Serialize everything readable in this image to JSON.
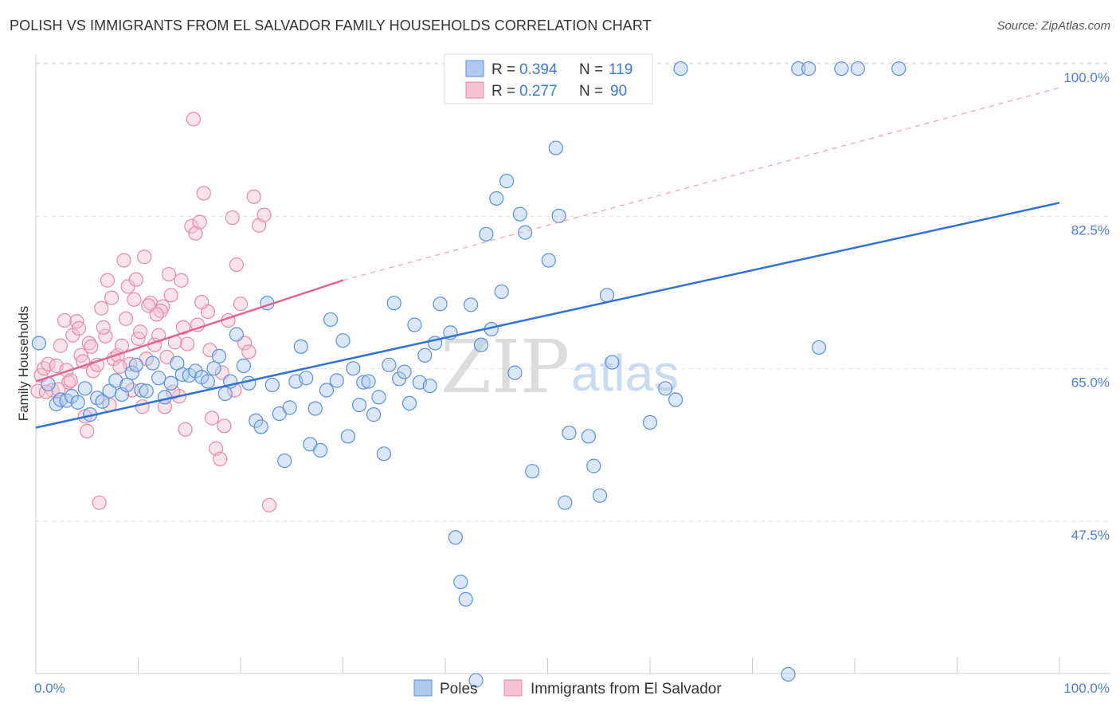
{
  "title": "POLISH VS IMMIGRANTS FROM EL SALVADOR FAMILY HOUSEHOLDS CORRELATION CHART",
  "source": "Source: ZipAtlas.com",
  "watermark": {
    "zip": "ZIP",
    "atlas": "atlas"
  },
  "chart_data": {
    "type": "scatter",
    "ylabel": "Family Households",
    "xlim": [
      0,
      100
    ],
    "ylim": [
      32,
      102
    ],
    "x_tick_labels": {
      "left": "0.0%",
      "right": "100.0%"
    },
    "y_ticks": [
      {
        "value": 47.5,
        "label": "47.5%"
      },
      {
        "value": 65.0,
        "label": "65.0%"
      },
      {
        "value": 82.5,
        "label": "82.5%"
      },
      {
        "value": 100.0,
        "label": "100.0%"
      }
    ],
    "grid": true,
    "legend_top": [
      {
        "r_label": "R = ",
        "r_value": "0.394",
        "n_label": "N = ",
        "n_value": "119"
      },
      {
        "r_label": "R = ",
        "r_value": "0.277",
        "n_label": "N = ",
        "n_value": "90"
      }
    ],
    "series": [
      {
        "name": "Poles",
        "color": "#5b8fde",
        "fill": "#aec9f0",
        "trend": {
          "x": [
            0,
            100
          ],
          "y": [
            59.8,
            85.6
          ],
          "style": "solid"
        },
        "points": [
          [
            0.3,
            69.5
          ],
          [
            1.2,
            64.8
          ],
          [
            2.0,
            62.5
          ],
          [
            2.4,
            63.0
          ],
          [
            3.0,
            62.9
          ],
          [
            3.5,
            63.4
          ],
          [
            4.1,
            62.7
          ],
          [
            4.8,
            64.3
          ],
          [
            5.3,
            61.3
          ],
          [
            6.0,
            63.2
          ],
          [
            6.5,
            62.8
          ],
          [
            7.2,
            64.0
          ],
          [
            7.8,
            65.2
          ],
          [
            8.4,
            63.6
          ],
          [
            8.9,
            64.7
          ],
          [
            9.4,
            66.1
          ],
          [
            9.8,
            67.0
          ],
          [
            10.3,
            64.1
          ],
          [
            10.8,
            64.0
          ],
          [
            11.4,
            67.2
          ],
          [
            12.0,
            65.5
          ],
          [
            12.6,
            63.3
          ],
          [
            13.2,
            64.9
          ],
          [
            13.8,
            67.2
          ],
          [
            14.3,
            65.9
          ],
          [
            15.0,
            65.8
          ],
          [
            15.6,
            66.3
          ],
          [
            16.2,
            65.6
          ],
          [
            16.8,
            65.1
          ],
          [
            17.4,
            66.6
          ],
          [
            17.9,
            68.0
          ],
          [
            18.5,
            63.7
          ],
          [
            19.0,
            65.1
          ],
          [
            19.6,
            70.5
          ],
          [
            20.3,
            66.9
          ],
          [
            20.8,
            64.9
          ],
          [
            21.5,
            60.6
          ],
          [
            22.0,
            59.9
          ],
          [
            22.6,
            74.1
          ],
          [
            23.1,
            64.7
          ],
          [
            23.8,
            61.4
          ],
          [
            24.3,
            56.0
          ],
          [
            24.8,
            62.1
          ],
          [
            25.4,
            65.1
          ],
          [
            25.9,
            69.1
          ],
          [
            26.4,
            65.5
          ],
          [
            26.8,
            57.9
          ],
          [
            27.3,
            62.0
          ],
          [
            27.8,
            57.2
          ],
          [
            28.4,
            64.1
          ],
          [
            28.8,
            72.2
          ],
          [
            29.4,
            65.2
          ],
          [
            30.0,
            69.8
          ],
          [
            30.5,
            58.8
          ],
          [
            31.0,
            66.6
          ],
          [
            31.6,
            62.4
          ],
          [
            32.0,
            65.0
          ],
          [
            32.5,
            65.1
          ],
          [
            33.0,
            61.3
          ],
          [
            33.5,
            63.3
          ],
          [
            34.0,
            56.8
          ],
          [
            34.5,
            67.0
          ],
          [
            35.0,
            74.1
          ],
          [
            35.5,
            65.4
          ],
          [
            36.0,
            66.2
          ],
          [
            36.5,
            62.6
          ],
          [
            37.0,
            71.6
          ],
          [
            37.5,
            65.0
          ],
          [
            38.0,
            68.1
          ],
          [
            38.5,
            64.6
          ],
          [
            39.0,
            69.5
          ],
          [
            39.5,
            74.0
          ],
          [
            40.5,
            70.7
          ],
          [
            41.0,
            47.2
          ],
          [
            41.5,
            42.1
          ],
          [
            42.5,
            73.9
          ],
          [
            42.0,
            40.1
          ],
          [
            43.0,
            30.8
          ],
          [
            43.5,
            69.3
          ],
          [
            44.0,
            82.0
          ],
          [
            44.5,
            71.1
          ],
          [
            45.0,
            86.1
          ],
          [
            45.5,
            75.4
          ],
          [
            46.0,
            88.1
          ],
          [
            46.8,
            66.1
          ],
          [
            47.3,
            84.3
          ],
          [
            47.8,
            82.2
          ],
          [
            48.5,
            54.8
          ],
          [
            49.7,
            101.0
          ],
          [
            49.9,
            101.0
          ],
          [
            50.5,
            101.0
          ],
          [
            51.0,
            101.0
          ],
          [
            52.0,
            101.0
          ],
          [
            52.6,
            101.0
          ],
          [
            50.1,
            79.0
          ],
          [
            50.8,
            91.9
          ],
          [
            51.1,
            84.1
          ],
          [
            51.7,
            51.2
          ],
          [
            52.1,
            59.2
          ],
          [
            54.0,
            58.8
          ],
          [
            54.5,
            55.4
          ],
          [
            55.1,
            52.0
          ],
          [
            55.8,
            75.0
          ],
          [
            56.3,
            67.3
          ],
          [
            60.0,
            60.4
          ],
          [
            61.5,
            64.3
          ],
          [
            62.5,
            63.0
          ],
          [
            63.0,
            101.0
          ],
          [
            73.5,
            31.5
          ],
          [
            74.5,
            101.0
          ],
          [
            75.5,
            101.0
          ],
          [
            76.5,
            69.0
          ],
          [
            78.7,
            101.0
          ],
          [
            80.3,
            101.0
          ],
          [
            84.3,
            101.0
          ],
          [
            55.6,
            101.0
          ],
          [
            57.0,
            101.0
          ],
          [
            53.5,
            101.0
          ],
          [
            54.9,
            101.0
          ]
        ]
      },
      {
        "name": "Immigrants from El Salvador",
        "color": "#e48aa6",
        "fill": "#f6c0d0",
        "trend": {
          "x": [
            0,
            30
          ],
          "y": [
            65.1,
            76.7
          ],
          "style": "solid",
          "dashed_extension": {
            "x": [
              30,
              100
            ],
            "y": [
              76.7,
              98.8
            ]
          }
        },
        "points": [
          [
            0.2,
            64.0
          ],
          [
            0.5,
            65.8
          ],
          [
            0.8,
            66.6
          ],
          [
            1.2,
            67.1
          ],
          [
            1.6,
            64.1
          ],
          [
            2.0,
            66.9
          ],
          [
            2.4,
            69.2
          ],
          [
            2.8,
            72.1
          ],
          [
            3.2,
            65.0
          ],
          [
            3.6,
            70.4
          ],
          [
            4.0,
            72.0
          ],
          [
            4.4,
            68.1
          ],
          [
            4.8,
            61.1
          ],
          [
            5.2,
            69.5
          ],
          [
            5.6,
            66.3
          ],
          [
            6.0,
            67.0
          ],
          [
            6.4,
            73.5
          ],
          [
            6.8,
            70.3
          ],
          [
            7.2,
            62.4
          ],
          [
            7.6,
            67.7
          ],
          [
            8.0,
            68.1
          ],
          [
            8.4,
            69.2
          ],
          [
            8.8,
            72.3
          ],
          [
            9.2,
            67.1
          ],
          [
            9.6,
            74.5
          ],
          [
            10.0,
            70.0
          ],
          [
            10.4,
            62.2
          ],
          [
            10.8,
            67.7
          ],
          [
            11.2,
            74.1
          ],
          [
            11.6,
            69.3
          ],
          [
            12.0,
            70.4
          ],
          [
            12.4,
            73.7
          ],
          [
            12.8,
            67.9
          ],
          [
            13.2,
            75.0
          ],
          [
            13.6,
            69.6
          ],
          [
            14.0,
            63.4
          ],
          [
            14.4,
            71.3
          ],
          [
            14.8,
            69.4
          ],
          [
            15.2,
            82.9
          ],
          [
            15.6,
            82.1
          ],
          [
            16.0,
            83.4
          ],
          [
            16.4,
            86.7
          ],
          [
            16.8,
            73.1
          ],
          [
            17.2,
            60.9
          ],
          [
            17.6,
            57.4
          ],
          [
            18.0,
            56.2
          ],
          [
            18.4,
            60.0
          ],
          [
            18.8,
            72.1
          ],
          [
            19.2,
            83.9
          ],
          [
            19.6,
            78.5
          ],
          [
            20.0,
            74.0
          ],
          [
            20.4,
            69.5
          ],
          [
            20.8,
            68.5
          ],
          [
            21.3,
            86.3
          ],
          [
            21.8,
            83.0
          ],
          [
            22.3,
            84.2
          ],
          [
            22.8,
            50.9
          ],
          [
            5.0,
            59.4
          ],
          [
            6.2,
            51.2
          ],
          [
            7.0,
            76.7
          ],
          [
            8.6,
            79.0
          ],
          [
            9.0,
            76.0
          ],
          [
            9.8,
            76.8
          ],
          [
            10.6,
            79.4
          ],
          [
            11.0,
            73.8
          ],
          [
            12.2,
            73.2
          ],
          [
            13.0,
            77.4
          ],
          [
            14.2,
            76.7
          ],
          [
            15.4,
            95.2
          ],
          [
            16.2,
            74.2
          ],
          [
            3.0,
            66.4
          ],
          [
            4.2,
            71.2
          ],
          [
            5.4,
            69.1
          ],
          [
            6.6,
            71.3
          ],
          [
            7.4,
            74.7
          ],
          [
            8.2,
            66.8
          ],
          [
            9.4,
            64.1
          ],
          [
            10.2,
            70.8
          ],
          [
            11.8,
            72.8
          ],
          [
            12.6,
            62.2
          ],
          [
            13.4,
            63.9
          ],
          [
            14.6,
            59.6
          ],
          [
            15.8,
            71.6
          ],
          [
            17.0,
            68.7
          ],
          [
            18.2,
            66.1
          ],
          [
            19.4,
            64.1
          ],
          [
            1.0,
            63.9
          ],
          [
            2.2,
            64.2
          ],
          [
            3.4,
            65.2
          ],
          [
            4.6,
            67.4
          ]
        ]
      }
    ]
  },
  "bottom_legend": [
    {
      "label": "Poles"
    },
    {
      "label": "Immigrants from El Salvador"
    }
  ]
}
